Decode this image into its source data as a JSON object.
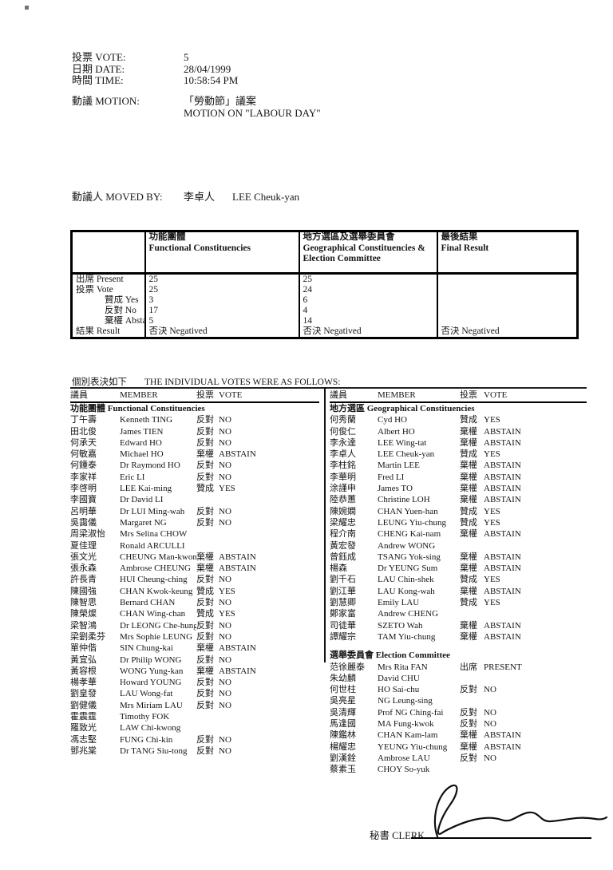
{
  "info": {
    "rows": [
      {
        "label": "投票 VOTE:",
        "value": "5"
      },
      {
        "label": "日期 DATE:",
        "value": "28/04/1999"
      },
      {
        "label": "時間 TIME:",
        "value": "10:58:54 PM"
      }
    ],
    "motion": {
      "label": "動議 MOTION:",
      "value_zh": "「勞動節」議案",
      "value_en": "MOTION ON \"LABOUR DAY\""
    },
    "moved_by": {
      "label": "動議人 MOVED BY:",
      "name_zh": "李卓人",
      "name_en": "LEE Cheuk-yan"
    }
  },
  "summary_table": {
    "col_headers": [
      {
        "zh": "功能團體",
        "en": "Functional Constituencies"
      },
      {
        "zh": "地方選區及選舉委員會",
        "en": "Geographical Constituencies & Election Committee"
      },
      {
        "zh": "最後結果",
        "en": "Final Result"
      }
    ],
    "rows": [
      {
        "label": "出席 Present",
        "fc": "25",
        "gc": "25",
        "fr": ""
      },
      {
        "label": "投票 Vote",
        "fc": "25",
        "gc": "24",
        "fr": ""
      },
      {
        "label": "贊成 Yes",
        "fc": "3",
        "gc": "6",
        "fr": ""
      },
      {
        "label": "反對 No",
        "fc": "17",
        "gc": "4",
        "fr": ""
      },
      {
        "label": "棄權 Abstain",
        "fc": "5",
        "gc": "14",
        "fr": ""
      },
      {
        "label": "結果 Result",
        "fc": "否決 Negatived",
        "gc": "否決 Negatived",
        "fr": "否決 Negatived"
      }
    ]
  },
  "individual": {
    "heading_zh": "個別表決如下",
    "heading_en": "THE INDIVIDUAL VOTES WERE AS FOLLOWS:",
    "col_headers": {
      "member_zh": "議員",
      "member_en": "MEMBER",
      "vote_zh": "投票",
      "vote_en": "VOTE"
    },
    "left": {
      "section": "功能團體 Functional Constituencies",
      "rows": [
        {
          "zh": "丁午壽",
          "en": "Kenneth TING",
          "vzh": "反對",
          "ven": "NO"
        },
        {
          "zh": "田北俊",
          "en": "James TIEN",
          "vzh": "反對",
          "ven": "NO"
        },
        {
          "zh": "何承天",
          "en": "Edward HO",
          "vzh": "反對",
          "ven": "NO"
        },
        {
          "zh": "何敏嘉",
          "en": "Michael HO",
          "vzh": "棄權",
          "ven": "ABSTAIN"
        },
        {
          "zh": "何鍾泰",
          "en": "Dr Raymond HO",
          "vzh": "反對",
          "ven": "NO"
        },
        {
          "zh": "李家祥",
          "en": "Eric LI",
          "vzh": "反對",
          "ven": "NO"
        },
        {
          "zh": "李啓明",
          "en": "LEE Kai-ming",
          "vzh": "贊成",
          "ven": "YES"
        },
        {
          "zh": "李國寶",
          "en": "Dr David LI",
          "vzh": "",
          "ven": ""
        },
        {
          "zh": "呂明華",
          "en": "Dr LUI Ming-wah",
          "vzh": "反對",
          "ven": "NO"
        },
        {
          "zh": "吳靄儀",
          "en": "Margaret NG",
          "vzh": "反對",
          "ven": "NO"
        },
        {
          "zh": "周梁淑怡",
          "en": "Mrs Selina CHOW",
          "vzh": "",
          "ven": ""
        },
        {
          "zh": "夏佳理",
          "en": "Ronald ARCULLI",
          "vzh": "",
          "ven": ""
        },
        {
          "zh": "張文光",
          "en": "CHEUNG Man-kwong",
          "vzh": "棄權",
          "ven": "ABSTAIN"
        },
        {
          "zh": "張永森",
          "en": "Ambrose CHEUNG",
          "vzh": "棄權",
          "ven": "ABSTAIN"
        },
        {
          "zh": "許長青",
          "en": "HUI Cheung-ching",
          "vzh": "反對",
          "ven": "NO"
        },
        {
          "zh": "陳國強",
          "en": "CHAN Kwok-keung",
          "vzh": "贊成",
          "ven": "YES"
        },
        {
          "zh": "陳智思",
          "en": "Bernard CHAN",
          "vzh": "反對",
          "ven": "NO"
        },
        {
          "zh": "陳榮燦",
          "en": "CHAN Wing-chan",
          "vzh": "贊成",
          "ven": "YES"
        },
        {
          "zh": "梁智鴻",
          "en": "Dr LEONG Che-hung",
          "vzh": "反對",
          "ven": "NO"
        },
        {
          "zh": "梁劉柔芬",
          "en": "Mrs Sophie LEUNG",
          "vzh": "反對",
          "ven": "NO"
        },
        {
          "zh": "單仲偕",
          "en": "SIN Chung-kai",
          "vzh": "棄權",
          "ven": "ABSTAIN"
        },
        {
          "zh": "黃宜弘",
          "en": "Dr Philip WONG",
          "vzh": "反對",
          "ven": "NO"
        },
        {
          "zh": "黃容根",
          "en": "WONG Yung-kan",
          "vzh": "棄權",
          "ven": "ABSTAIN"
        },
        {
          "zh": "楊孝華",
          "en": "Howard YOUNG",
          "vzh": "反對",
          "ven": "NO"
        },
        {
          "zh": "劉皇發",
          "en": "LAU Wong-fat",
          "vzh": "反對",
          "ven": "NO"
        },
        {
          "zh": "劉健儀",
          "en": "Mrs Miriam LAU",
          "vzh": "反對",
          "ven": "NO"
        },
        {
          "zh": "霍震霆",
          "en": "Timothy FOK",
          "vzh": "",
          "ven": ""
        },
        {
          "zh": "羅致光",
          "en": "LAW Chi-kwong",
          "vzh": "",
          "ven": ""
        },
        {
          "zh": "馮志堅",
          "en": "FUNG Chi-kin",
          "vzh": "反對",
          "ven": "NO"
        },
        {
          "zh": "鄧兆棠",
          "en": "Dr TANG Siu-tong",
          "vzh": "反對",
          "ven": "NO"
        }
      ]
    },
    "right": {
      "section1": "地方選區 Geographical Constituencies",
      "rows1": [
        {
          "zh": "何秀蘭",
          "en": "Cyd HO",
          "vzh": "贊成",
          "ven": "YES"
        },
        {
          "zh": "何俊仁",
          "en": "Albert HO",
          "vzh": "棄權",
          "ven": "ABSTAIN"
        },
        {
          "zh": "李永達",
          "en": "LEE Wing-tat",
          "vzh": "棄權",
          "ven": "ABSTAIN"
        },
        {
          "zh": "李卓人",
          "en": "LEE Cheuk-yan",
          "vzh": "贊成",
          "ven": "YES"
        },
        {
          "zh": "李柱銘",
          "en": "Martin LEE",
          "vzh": "棄權",
          "ven": "ABSTAIN"
        },
        {
          "zh": "李華明",
          "en": "Fred LI",
          "vzh": "棄權",
          "ven": "ABSTAIN"
        },
        {
          "zh": "涂謹申",
          "en": "James TO",
          "vzh": "棄權",
          "ven": "ABSTAIN"
        },
        {
          "zh": "陸恭蕙",
          "en": "Christine LOH",
          "vzh": "棄權",
          "ven": "ABSTAIN"
        },
        {
          "zh": "陳婉嫻",
          "en": "CHAN Yuen-han",
          "vzh": "贊成",
          "ven": "YES"
        },
        {
          "zh": "梁耀忠",
          "en": "LEUNG Yiu-chung",
          "vzh": "贊成",
          "ven": "YES"
        },
        {
          "zh": "程介南",
          "en": "CHENG Kai-nam",
          "vzh": "棄權",
          "ven": "ABSTAIN"
        },
        {
          "zh": "黃宏發",
          "en": "Andrew WONG",
          "vzh": "",
          "ven": ""
        },
        {
          "zh": "曾鈺成",
          "en": "TSANG Yok-sing",
          "vzh": "棄權",
          "ven": "ABSTAIN"
        },
        {
          "zh": "楊森",
          "en": "Dr YEUNG Sum",
          "vzh": "棄權",
          "ven": "ABSTAIN"
        },
        {
          "zh": "劉千石",
          "en": "LAU Chin-shek",
          "vzh": "贊成",
          "ven": "YES"
        },
        {
          "zh": "劉江華",
          "en": "LAU Kong-wah",
          "vzh": "棄權",
          "ven": "ABSTAIN"
        },
        {
          "zh": "劉慧卿",
          "en": "Emily LAU",
          "vzh": "贊成",
          "ven": "YES"
        },
        {
          "zh": "鄭家富",
          "en": "Andrew CHENG",
          "vzh": "",
          "ven": ""
        },
        {
          "zh": "司徒華",
          "en": "SZETO Wah",
          "vzh": "棄權",
          "ven": "ABSTAIN"
        },
        {
          "zh": "譚耀宗",
          "en": "TAM Yiu-chung",
          "vzh": "棄權",
          "ven": "ABSTAIN"
        }
      ],
      "section2": "選舉委員會 Election Committee",
      "rows2": [
        {
          "zh": "范徐麗泰",
          "en": "Mrs Rita FAN",
          "vzh": "出席",
          "ven": "PRESENT"
        },
        {
          "zh": "朱幼麟",
          "en": "David CHU",
          "vzh": "",
          "ven": ""
        },
        {
          "zh": "何世柱",
          "en": "HO Sai-chu",
          "vzh": "反對",
          "ven": "NO"
        },
        {
          "zh": "吳亮星",
          "en": "NG Leung-sing",
          "vzh": "",
          "ven": ""
        },
        {
          "zh": "吳清輝",
          "en": "Prof NG Ching-fai",
          "vzh": "反對",
          "ven": "NO"
        },
        {
          "zh": "馬逢國",
          "en": "MA Fung-kwok",
          "vzh": "反對",
          "ven": "NO"
        },
        {
          "zh": "陳鑑林",
          "en": "CHAN Kam-lam",
          "vzh": "棄權",
          "ven": "ABSTAIN"
        },
        {
          "zh": "楊耀忠",
          "en": "YEUNG Yiu-chung",
          "vzh": "棄權",
          "ven": "ABSTAIN"
        },
        {
          "zh": "劉漢銓",
          "en": "Ambrose LAU",
          "vzh": "反對",
          "ven": "NO"
        },
        {
          "zh": "蔡素玉",
          "en": "CHOY So-yuk",
          "vzh": "",
          "ven": ""
        }
      ]
    }
  },
  "footer": {
    "clerk_label": "秘書 CLERK",
    "signature_icon": "handwritten-signature"
  }
}
